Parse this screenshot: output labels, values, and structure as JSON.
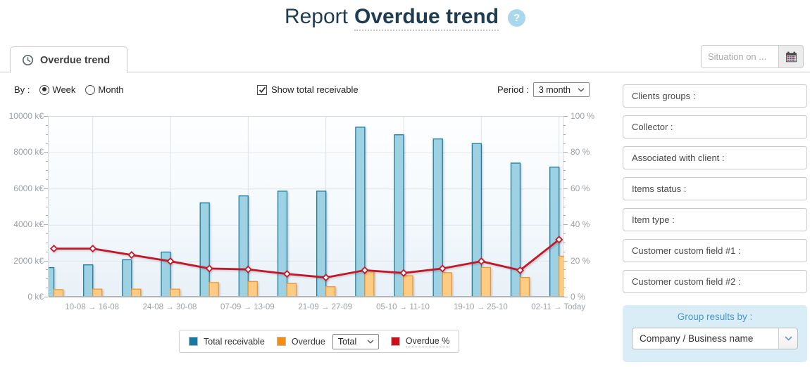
{
  "header": {
    "title_prefix": "Report",
    "title": "Overdue trend",
    "help_glyph": "?"
  },
  "tab": {
    "label": "Overdue trend"
  },
  "situation": {
    "placeholder": "Situation on ..."
  },
  "controls": {
    "by_label": "By :",
    "radios": [
      {
        "label": "Week",
        "checked": true
      },
      {
        "label": "Month",
        "checked": false
      }
    ],
    "checkbox": {
      "label": "Show total receivable",
      "checked": true
    },
    "period_label": "Period :",
    "period_value": "3 month"
  },
  "chart_data": {
    "type": "bar+line",
    "title": "",
    "categories": [
      "",
      "10-08 → 16-08",
      "",
      "24-08 → 30-08",
      "",
      "07-09 → 13-09",
      "",
      "21-09 → 27-09",
      "",
      "05-10 → 11-10",
      "",
      "19-10 → 25-10",
      "",
      "02-11 → Today"
    ],
    "series": [
      {
        "name": "Total receivable",
        "type": "bar",
        "axis": "left",
        "fill": "#9ed1e1",
        "stroke": "#1c7ba4",
        "values": [
          1650,
          1800,
          2080,
          2510,
          5230,
          5620,
          5880,
          5880,
          9420,
          9000,
          8770,
          8510,
          7430,
          7210
        ]
      },
      {
        "name": "Overdue",
        "type": "bar",
        "axis": "left",
        "fill": "#fccc85",
        "stroke": "#f2952f",
        "values": [
          430,
          460,
          460,
          460,
          820,
          880,
          770,
          590,
          1460,
          1200,
          1370,
          1660,
          1110,
          2280
        ]
      },
      {
        "name": "Overdue %",
        "type": "line",
        "axis": "right",
        "stroke": "#c41829",
        "values": [
          27,
          27,
          23.5,
          20,
          16,
          15.5,
          13,
          11,
          15,
          13.5,
          16,
          20,
          15,
          32
        ]
      }
    ],
    "left_axis": {
      "ticks": [
        "0 k€",
        "2000 k€",
        "4000 k€",
        "6000 k€",
        "8000 k€",
        "10000 k€"
      ],
      "min": 0,
      "max": 10000
    },
    "right_axis": {
      "ticks": [
        "0 %",
        "20 %",
        "40 %",
        "60 %",
        "80 %",
        "100 %"
      ],
      "min": 0,
      "max": 100
    },
    "grid": true,
    "legend_position": "bottom"
  },
  "legend": {
    "total_receivable": "Total receivable",
    "overdue": "Overdue",
    "overdue_select_value": "Total",
    "overdue_pct": "Overdue %",
    "colors": {
      "total_receivable": "#1579a2",
      "overdue": "#f68d11",
      "overdue_pct": "#cc1019"
    }
  },
  "filters": [
    "Clients groups :",
    "Collector :",
    "Associated with client :",
    "Items status :",
    "Item type :",
    "Customer custom field #1 :",
    "Customer custom field #2 :"
  ],
  "group_by": {
    "title": "Group results by :",
    "value": "Company / Business name"
  }
}
